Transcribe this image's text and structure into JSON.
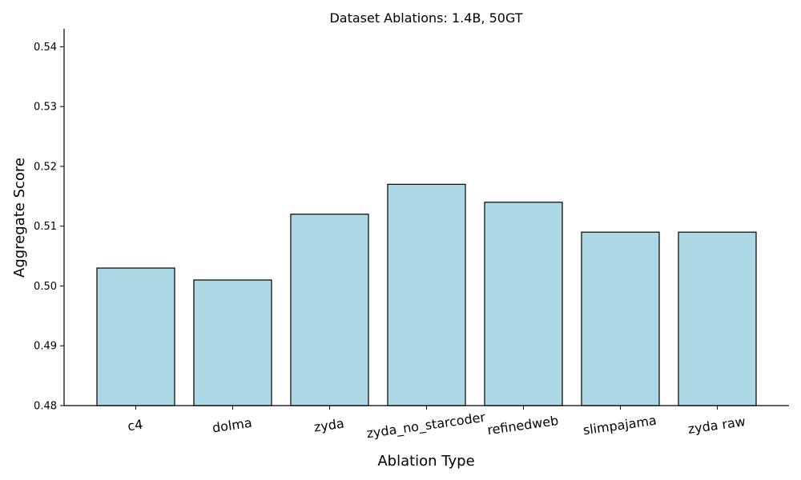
{
  "chart_data": {
    "type": "bar",
    "title": "Dataset Ablations: 1.4B, 50GT",
    "xlabel": "Ablation Type",
    "ylabel": "Aggregate Score",
    "categories": [
      "c4",
      "dolma",
      "zyda",
      "zyda_no_starcoder",
      "refinedweb",
      "slimpajama",
      "zyda raw"
    ],
    "values": [
      0.503,
      0.501,
      0.512,
      0.517,
      0.514,
      0.509,
      0.509
    ],
    "ylim": [
      0.48,
      0.543
    ],
    "yticks": [
      0.48,
      0.49,
      0.5,
      0.51,
      0.52,
      0.53,
      0.54
    ],
    "ytick_labels": [
      "0.48",
      "0.49",
      "0.50",
      "0.51",
      "0.52",
      "0.53",
      "0.54"
    ],
    "bar_color": "#add8e6",
    "edge_color": "#000000",
    "grid": false,
    "legend": "none"
  }
}
